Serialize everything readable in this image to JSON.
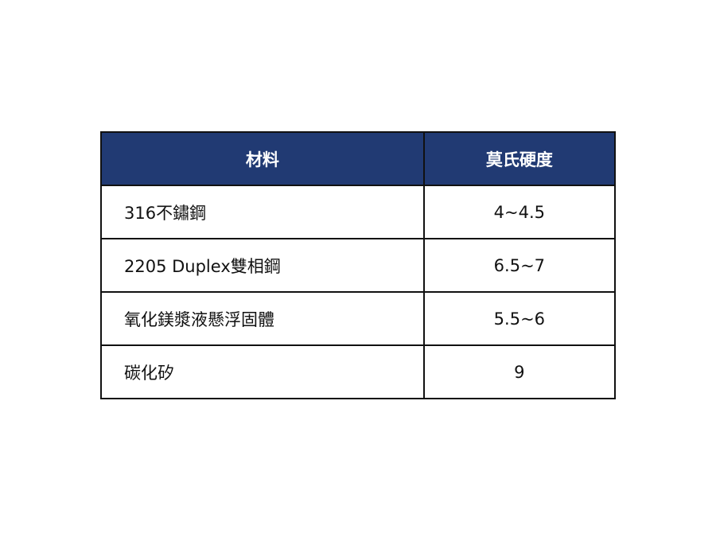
{
  "table": {
    "headers": [
      "材料",
      "莫氏硬度"
    ],
    "rows": [
      {
        "material": "316不鏽鋼",
        "hardness": "4~4.5"
      },
      {
        "material": "2205 Duplex雙相鋼",
        "hardness": "6.5~7"
      },
      {
        "material": "氧化鎂漿液懸浮固體",
        "hardness": "5.5~6"
      },
      {
        "material": "碳化矽",
        "hardness": "9"
      }
    ]
  },
  "colors": {
    "header_bg": "#213a73",
    "header_text": "#ffffff",
    "border": "#111111"
  }
}
